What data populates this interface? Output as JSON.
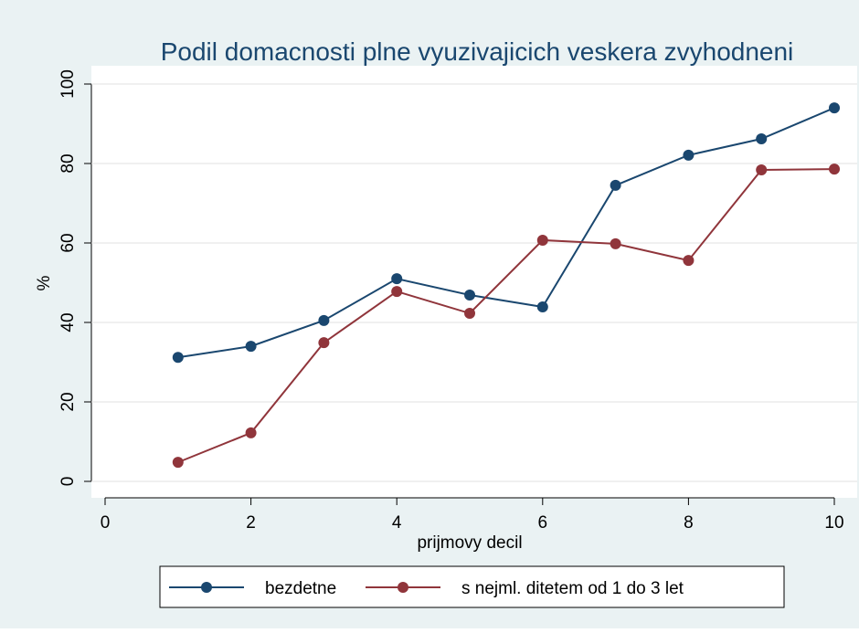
{
  "chart_data": {
    "type": "line",
    "title": "Podil domacnosti plne vyuzivajicich veskera zvyhodneni",
    "x_label": "prijmovy decil",
    "y_label": "%",
    "x": [
      1,
      2,
      3,
      4,
      5,
      6,
      7,
      8,
      9,
      10
    ],
    "series": [
      {
        "name": "bezdetne",
        "color": "#1a476f",
        "values": [
          31.2,
          34.0,
          40.5,
          51.0,
          46.9,
          43.9,
          74.5,
          82.1,
          86.2,
          94.0
        ]
      },
      {
        "name": "s nejml. ditetem od 1 do 3 let",
        "color": "#90353b",
        "values": [
          4.8,
          12.2,
          34.9,
          47.8,
          42.3,
          60.7,
          59.8,
          55.6,
          78.4,
          78.6
        ]
      }
    ],
    "xlim": [
      0,
      10
    ],
    "xticks": [
      0,
      2,
      4,
      6,
      8,
      10
    ],
    "ylim": [
      0,
      100
    ],
    "yticks": [
      0,
      20,
      40,
      60,
      80,
      100
    ],
    "grid": true
  }
}
